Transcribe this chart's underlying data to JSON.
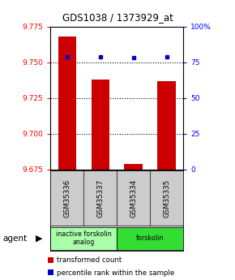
{
  "title": "GDS1038 / 1373929_at",
  "samples": [
    "GSM35336",
    "GSM35337",
    "GSM35334",
    "GSM35335"
  ],
  "bar_values": [
    9.768,
    9.738,
    9.679,
    9.737
  ],
  "percentile_values": [
    79,
    79,
    78,
    79
  ],
  "y_min": 9.675,
  "y_max": 9.775,
  "y_ticks": [
    9.675,
    9.7,
    9.725,
    9.75,
    9.775
  ],
  "y2_ticks": [
    0,
    25,
    50,
    75,
    100
  ],
  "bar_color": "#cc0000",
  "dot_color": "#0000cc",
  "bar_bottom": 9.675,
  "agent_groups": [
    {
      "label": "inactive forskolin\nanalog",
      "span": [
        0,
        2
      ],
      "color": "#aaffaa"
    },
    {
      "label": "forskolin",
      "span": [
        2,
        4
      ],
      "color": "#33dd33"
    }
  ],
  "legend_bar_label": "transformed count",
  "legend_dot_label": "percentile rank within the sample",
  "agent_label": "agent",
  "background_color": "#ffffff"
}
